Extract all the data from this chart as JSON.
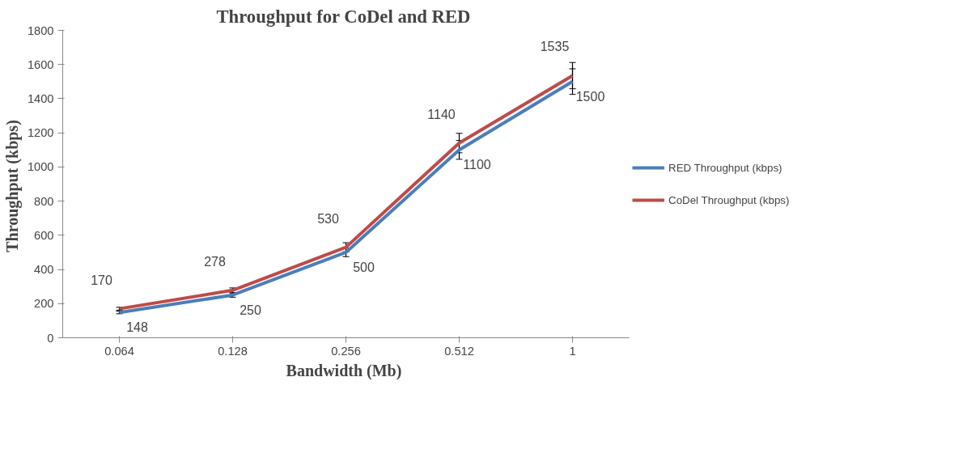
{
  "chart_data": {
    "type": "line",
    "title": "Throughput  for CoDel and RED",
    "xlabel": "Bandwidth  (Mb)",
    "ylabel": "Throughput  (kbps)",
    "categories": [
      "0.064",
      "0.128",
      "0.256",
      "0.512",
      "1"
    ],
    "series": [
      {
        "name": "RED Throughput (kbps)",
        "color": "#4a7ebb",
        "values": [
          148,
          250,
          500,
          1100,
          1500
        ],
        "errors": [
          7.4,
          12.5,
          25,
          55,
          75
        ]
      },
      {
        "name": "CoDel Throughput (kbps)",
        "color": "#be4b48",
        "values": [
          170,
          278,
          530,
          1140,
          1535
        ],
        "errors": [
          8.5,
          13.9,
          26.5,
          57,
          76.8
        ]
      }
    ],
    "ylim": [
      0,
      1800
    ],
    "yticks": [
      0,
      200,
      400,
      600,
      800,
      1000,
      1200,
      1400,
      1600,
      1800
    ],
    "data_labels": true,
    "legend": "right",
    "grid": false,
    "marker": "none",
    "line_style": "solid"
  }
}
